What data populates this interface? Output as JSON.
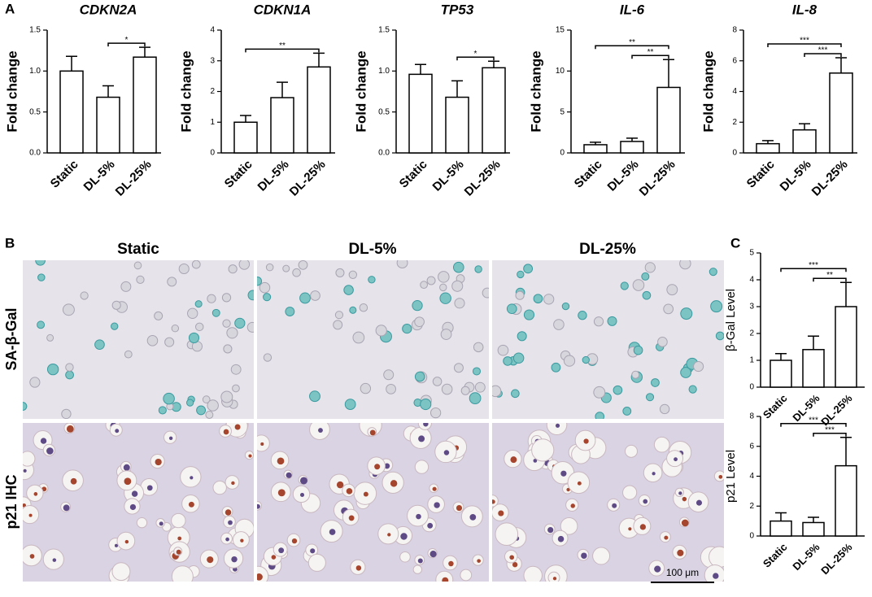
{
  "figure": {
    "panel_labels": [
      "A",
      "B",
      "C"
    ],
    "columns": [
      "Static",
      "DL-5%",
      "DL-25%"
    ],
    "rows": [
      "SA-β-Gal",
      "p21 IHC"
    ],
    "scale_bar": "100 μm"
  },
  "chart_data": [
    {
      "type": "bar",
      "title": "CDKN2A",
      "ylabel": "Fold change",
      "categories": [
        "Static",
        "DL-5%",
        "DL-25%"
      ],
      "values": [
        1.0,
        0.68,
        1.17
      ],
      "errors": [
        0.18,
        0.14,
        0.12
      ],
      "color": "#ffffff",
      "ylim": [
        0,
        1.5
      ],
      "yticks": [
        {
          "value": 0,
          "label": "0.0"
        },
        {
          "value": 0.5,
          "label": "0.5"
        },
        {
          "value": 1,
          "label": "1.0"
        },
        {
          "value": 1.5,
          "label": "1.5"
        }
      ],
      "significance": [
        {
          "pair": [
            1,
            2
          ],
          "label": "*"
        }
      ]
    },
    {
      "type": "bar",
      "title": "CDKN1A",
      "ylabel": "Fold change",
      "categories": [
        "Static",
        "DL-5%",
        "DL-25%"
      ],
      "values": [
        1.0,
        1.8,
        2.8
      ],
      "errors": [
        0.22,
        0.5,
        0.45
      ],
      "color": "#ffffff",
      "ylim": [
        0,
        4
      ],
      "yticks": [
        0,
        1,
        2,
        3,
        4
      ],
      "significance": [
        {
          "pair": [
            0,
            2
          ],
          "label": "**"
        }
      ]
    },
    {
      "type": "bar",
      "title": "TP53",
      "ylabel": "Fold change",
      "categories": [
        "Static",
        "DL-5%",
        "DL-25%"
      ],
      "values": [
        0.96,
        0.68,
        1.04
      ],
      "errors": [
        0.12,
        0.2,
        0.08
      ],
      "color": "#ffffff",
      "ylim": [
        0,
        1.5
      ],
      "yticks": [
        {
          "value": 0,
          "label": "0.0"
        },
        {
          "value": 0.5,
          "label": "0.5"
        },
        {
          "value": 1,
          "label": "1.0"
        },
        {
          "value": 1.5,
          "label": "1.5"
        }
      ],
      "significance": [
        {
          "pair": [
            1,
            2
          ],
          "label": "*"
        }
      ]
    },
    {
      "type": "bar",
      "title": "IL-6",
      "ylabel": "Fold change",
      "categories": [
        "Static",
        "DL-5%",
        "DL-25%"
      ],
      "values": [
        1.0,
        1.4,
        8.0
      ],
      "errors": [
        0.3,
        0.4,
        3.4
      ],
      "color": "#ffffff",
      "ylim": [
        0,
        15
      ],
      "yticks": [
        0,
        5,
        10,
        15
      ],
      "significance": [
        {
          "pair": [
            1,
            2
          ],
          "label": "**"
        },
        {
          "pair": [
            0,
            2
          ],
          "label": "**"
        }
      ]
    },
    {
      "type": "bar",
      "title": "IL-8",
      "ylabel": "Fold change",
      "categories": [
        "Static",
        "DL-5%",
        "DL-25%"
      ],
      "values": [
        0.6,
        1.5,
        5.2
      ],
      "errors": [
        0.2,
        0.4,
        1.0
      ],
      "color": "#ffffff",
      "ylim": [
        0,
        8
      ],
      "yticks": [
        0,
        2,
        4,
        6,
        8
      ],
      "significance": [
        {
          "pair": [
            1,
            2
          ],
          "label": "***"
        },
        {
          "pair": [
            0,
            2
          ],
          "label": "***"
        }
      ]
    },
    {
      "type": "bar",
      "ylabel": "β-Gal Level",
      "categories": [
        "Static",
        "DL-5%",
        "DL-25%"
      ],
      "values": [
        1.0,
        1.4,
        3.0
      ],
      "errors": [
        0.25,
        0.5,
        0.9
      ],
      "color": "#ffffff",
      "ylim": [
        0,
        5
      ],
      "yticks": [
        0,
        1,
        2,
        3,
        4,
        5
      ],
      "significance": [
        {
          "pair": [
            1,
            2
          ],
          "label": "**"
        },
        {
          "pair": [
            0,
            2
          ],
          "label": "***"
        }
      ]
    },
    {
      "type": "bar",
      "ylabel": "p21 Level",
      "categories": [
        "Static",
        "DL-5%",
        "DL-25%"
      ],
      "values": [
        1.0,
        0.9,
        4.7
      ],
      "errors": [
        0.55,
        0.35,
        1.9
      ],
      "color": "#ffffff",
      "ylim": [
        0,
        8
      ],
      "yticks": [
        0,
        2,
        4,
        6,
        8
      ],
      "significance": [
        {
          "pair": [
            1,
            2
          ],
          "label": "***"
        },
        {
          "pair": [
            0,
            2
          ],
          "label": "***"
        }
      ]
    }
  ]
}
